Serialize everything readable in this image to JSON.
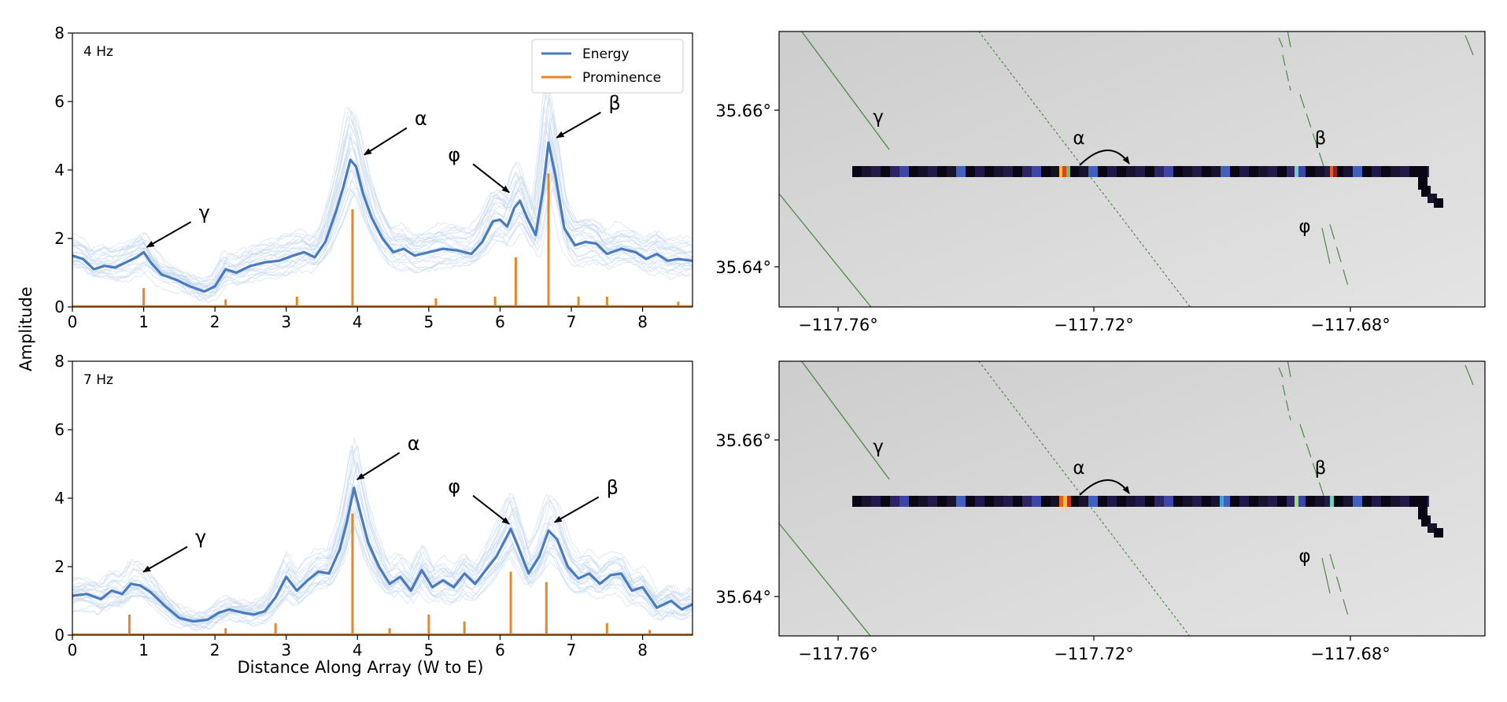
{
  "figure": {
    "ylabel": "Amplitude",
    "xlabel": "Distance Along Array (W  to E)",
    "legend": {
      "placement": "top-right",
      "entries": [
        {
          "label": "Energy",
          "color": "#4a7bbf"
        },
        {
          "label": "Prominence",
          "color": "#e8862a"
        }
      ]
    }
  },
  "colors": {
    "energy": "#4a7bbf",
    "energy_faint": "#c6d8ee",
    "prominence": "#e8862a",
    "map_bg": "#d6d6d6",
    "fault": "#4e8a48"
  },
  "chart_data": [
    {
      "type": "line",
      "panel_label": "4 Hz",
      "xlim": [
        0,
        8.7
      ],
      "ylim": [
        0,
        8
      ],
      "xticks": [
        "0",
        "1",
        "2",
        "3",
        "4",
        "5",
        "6",
        "7",
        "8"
      ],
      "yticks": [
        "0",
        "2",
        "4",
        "6",
        "8"
      ],
      "series": [
        {
          "name": "Energy",
          "x": [
            0,
            0.15,
            0.3,
            0.45,
            0.6,
            0.75,
            0.9,
            1.0,
            1.1,
            1.25,
            1.45,
            1.65,
            1.85,
            2.0,
            2.15,
            2.3,
            2.5,
            2.7,
            2.9,
            3.1,
            3.25,
            3.4,
            3.55,
            3.7,
            3.8,
            3.9,
            3.98,
            4.08,
            4.2,
            4.35,
            4.5,
            4.65,
            4.8,
            5.0,
            5.2,
            5.4,
            5.6,
            5.75,
            5.9,
            6.0,
            6.1,
            6.2,
            6.28,
            6.38,
            6.5,
            6.6,
            6.68,
            6.78,
            6.9,
            7.05,
            7.2,
            7.35,
            7.5,
            7.7,
            7.9,
            8.05,
            8.2,
            8.35,
            8.5,
            8.7
          ],
          "y": [
            1.5,
            1.4,
            1.1,
            1.2,
            1.15,
            1.3,
            1.45,
            1.6,
            1.3,
            0.95,
            0.8,
            0.6,
            0.45,
            0.6,
            1.1,
            1.0,
            1.2,
            1.3,
            1.35,
            1.5,
            1.6,
            1.45,
            1.9,
            2.8,
            3.5,
            4.3,
            4.1,
            3.3,
            2.6,
            2.0,
            1.6,
            1.7,
            1.5,
            1.6,
            1.7,
            1.65,
            1.55,
            1.9,
            2.5,
            2.55,
            2.35,
            2.9,
            3.1,
            2.6,
            2.1,
            3.4,
            4.8,
            3.8,
            2.3,
            1.8,
            1.9,
            1.85,
            1.55,
            1.7,
            1.6,
            1.4,
            1.55,
            1.35,
            1.4,
            1.35
          ]
        },
        {
          "name": "Prominence",
          "stems": [
            {
              "x": 1.0,
              "y": 0.55
            },
            {
              "x": 2.15,
              "y": 0.22
            },
            {
              "x": 3.15,
              "y": 0.3
            },
            {
              "x": 3.93,
              "y": 2.85
            },
            {
              "x": 5.1,
              "y": 0.25
            },
            {
              "x": 5.93,
              "y": 0.3
            },
            {
              "x": 6.22,
              "y": 1.45
            },
            {
              "x": 6.68,
              "y": 3.9
            },
            {
              "x": 7.1,
              "y": 0.3
            },
            {
              "x": 7.5,
              "y": 0.3
            },
            {
              "x": 8.5,
              "y": 0.15
            }
          ]
        }
      ],
      "annotations": [
        {
          "text": "γ",
          "x": 1.0,
          "y": 1.7
        },
        {
          "text": "α",
          "x": 4.05,
          "y": 4.4
        },
        {
          "text": "φ",
          "x": 6.15,
          "y": 3.3
        },
        {
          "text": "β",
          "x": 6.75,
          "y": 4.9
        }
      ]
    },
    {
      "type": "line",
      "panel_label": "7 Hz",
      "xlim": [
        0,
        8.7
      ],
      "ylim": [
        0,
        8
      ],
      "xticks": [
        "0",
        "1",
        "2",
        "3",
        "4",
        "5",
        "6",
        "7",
        "8"
      ],
      "yticks": [
        "0",
        "2",
        "4",
        "6",
        "8"
      ],
      "series": [
        {
          "name": "Energy",
          "x": [
            0,
            0.2,
            0.4,
            0.55,
            0.7,
            0.82,
            0.95,
            1.1,
            1.3,
            1.5,
            1.7,
            1.9,
            2.05,
            2.2,
            2.4,
            2.55,
            2.7,
            2.85,
            3.0,
            3.15,
            3.3,
            3.45,
            3.6,
            3.75,
            3.85,
            3.95,
            4.05,
            4.15,
            4.3,
            4.45,
            4.6,
            4.75,
            4.9,
            5.05,
            5.2,
            5.35,
            5.5,
            5.65,
            5.8,
            5.95,
            6.05,
            6.15,
            6.25,
            6.4,
            6.55,
            6.68,
            6.8,
            6.95,
            7.1,
            7.25,
            7.4,
            7.55,
            7.7,
            7.85,
            8.0,
            8.2,
            8.4,
            8.55,
            8.7
          ],
          "y": [
            1.15,
            1.2,
            1.05,
            1.3,
            1.2,
            1.5,
            1.45,
            1.25,
            0.85,
            0.5,
            0.4,
            0.45,
            0.65,
            0.75,
            0.65,
            0.6,
            0.7,
            1.1,
            1.7,
            1.3,
            1.6,
            1.85,
            1.8,
            2.5,
            3.3,
            4.3,
            3.5,
            2.7,
            2.0,
            1.5,
            1.7,
            1.3,
            1.9,
            1.4,
            1.6,
            1.4,
            1.8,
            1.5,
            1.9,
            2.3,
            2.7,
            3.1,
            2.6,
            1.8,
            2.3,
            3.05,
            2.8,
            2.0,
            1.65,
            1.8,
            1.5,
            1.75,
            1.8,
            1.3,
            1.4,
            0.8,
            1.0,
            0.75,
            0.9
          ]
        },
        {
          "name": "Prominence",
          "stems": [
            {
              "x": 0.8,
              "y": 0.6
            },
            {
              "x": 2.15,
              "y": 0.2
            },
            {
              "x": 2.85,
              "y": 0.35
            },
            {
              "x": 3.93,
              "y": 3.55
            },
            {
              "x": 4.45,
              "y": 0.2
            },
            {
              "x": 5.0,
              "y": 0.6
            },
            {
              "x": 5.5,
              "y": 0.4
            },
            {
              "x": 6.15,
              "y": 1.85
            },
            {
              "x": 6.65,
              "y": 1.55
            },
            {
              "x": 7.5,
              "y": 0.35
            },
            {
              "x": 8.1,
              "y": 0.15
            }
          ]
        }
      ],
      "annotations": [
        {
          "text": "γ",
          "x": 0.95,
          "y": 1.8
        },
        {
          "text": "α",
          "x": 3.95,
          "y": 4.5
        },
        {
          "text": "φ",
          "x": 6.15,
          "y": 3.2
        },
        {
          "text": "β",
          "x": 6.72,
          "y": 3.25
        }
      ]
    }
  ],
  "maps": [
    {
      "xticks": [
        "−117.76°",
        "−117.72°",
        "−117.68°"
      ],
      "yticks": [
        "35.66°",
        "35.64°"
      ],
      "labels": [
        "γ",
        "α",
        "β",
        "φ"
      ]
    },
    {
      "xticks": [
        "−117.76°",
        "−117.72°",
        "−117.68°"
      ],
      "yticks": [
        "35.66°",
        "35.64°"
      ],
      "labels": [
        "γ",
        "α",
        "β",
        "φ"
      ]
    }
  ]
}
